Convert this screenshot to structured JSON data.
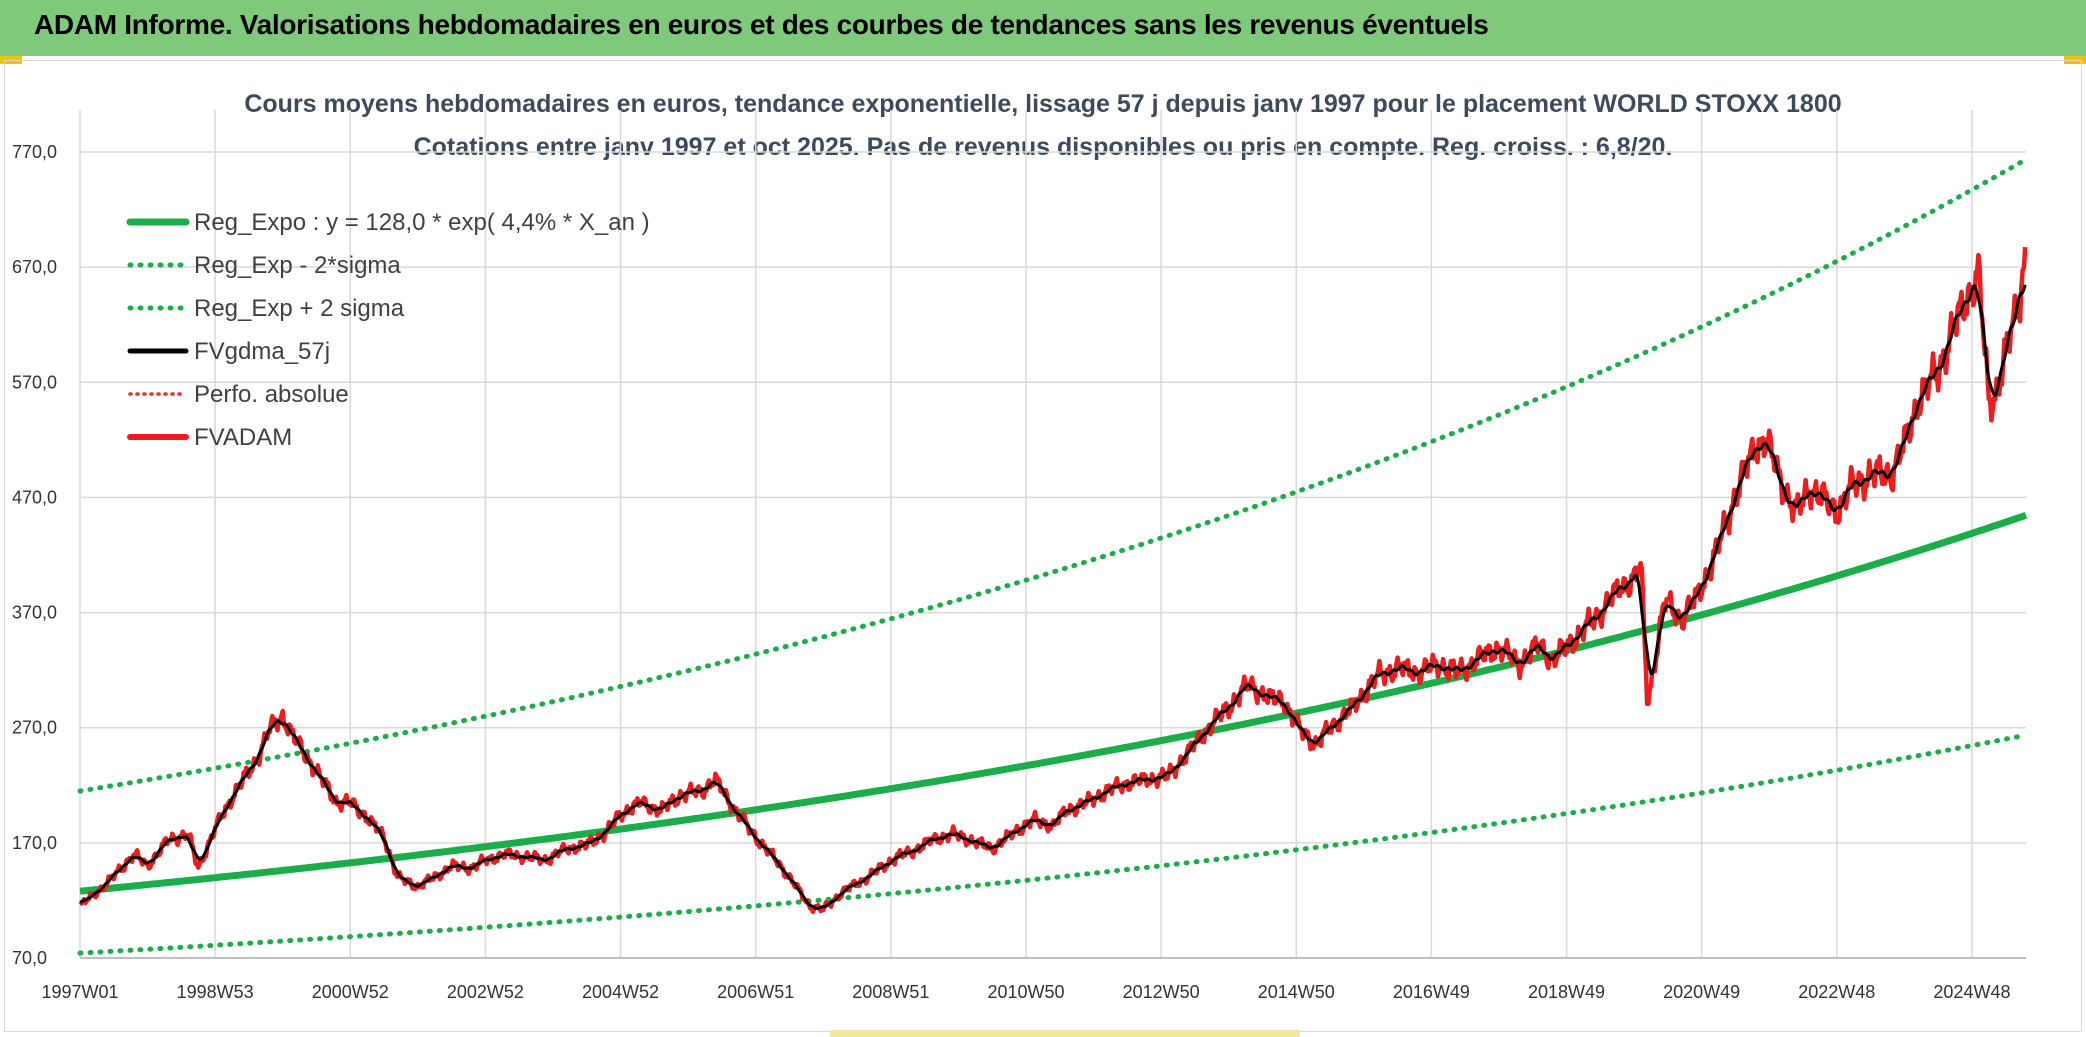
{
  "header": {
    "title": "ADAM Informe. Valorisations hebdomadaires en euros et des courbes de tendances sans les revenus éventuels"
  },
  "colors": {
    "banner": "#7fc97a",
    "trend": "#1aad4a",
    "fvadam": "#ee1c1c",
    "gdma": "#000000",
    "perfo": "#e03030",
    "grid": "#d9d9d9"
  },
  "chart_data": {
    "type": "line",
    "title": "Cours moyens hebdomadaires en euros, tendance exponentielle, lissage 57 j depuis janv 1997 pour le placement WORLD STOXX 1800",
    "subtitle": "Cotations entre janv 1997 et oct 2025. Pas de revenus disponibles ou pris en compte. Reg. croiss. : 6,8/20.",
    "xlabel": "",
    "ylabel": "",
    "ylim": [
      70,
      770
    ],
    "y_ticks": [
      "770,0",
      "670,0",
      "570,0",
      "470,0",
      "370,0",
      "270,0",
      "170,0",
      "70,0"
    ],
    "x_ticks": [
      "1997W01",
      "1998W53",
      "2000W52",
      "2002W52",
      "2004W52",
      "2006W51",
      "2008W51",
      "2010W50",
      "2012W50",
      "2014W50",
      "2016W49",
      "2018W49",
      "2020W49",
      "2022W48",
      "2024W48"
    ],
    "x_range": [
      1997.0,
      2025.8
    ],
    "grid": true,
    "legend_position": "top-left",
    "regression": {
      "a": 128.0,
      "rate": 0.044,
      "sigma_factor_low": 0.58,
      "sigma_factor_high": 1.68
    },
    "series": [
      {
        "name": "Reg_Expo : y = 128,0 * exp( 4,4% *  X_an )",
        "style": "solid-thick",
        "color": "#1aad4a"
      },
      {
        "name": "Reg_Exp - 2*sigma",
        "style": "dotted",
        "color": "#1aad4a"
      },
      {
        "name": "Reg_Exp + 2 sigma",
        "style": "dotted",
        "color": "#1aad4a"
      },
      {
        "name": "FVgdma_57j",
        "style": "solid",
        "color": "#000000"
      },
      {
        "name": "Perfo. absolue",
        "style": "dotted",
        "color": "#e03030"
      },
      {
        "name": "FVADAM",
        "style": "solid",
        "color": "#ee1c1c",
        "x": [
          1997.0,
          1997.4,
          1997.8,
          1998.0,
          1998.3,
          1998.6,
          1998.75,
          1999.0,
          1999.3,
          1999.6,
          1999.8,
          2000.0,
          2000.2,
          2000.5,
          2000.8,
          2001.0,
          2001.2,
          2001.5,
          2001.7,
          2002.0,
          2002.3,
          2002.5,
          2002.8,
          2003.0,
          2003.3,
          2003.6,
          2003.9,
          2004.2,
          2004.5,
          2004.8,
          2005.0,
          2005.3,
          2005.6,
          2005.9,
          2006.2,
          2006.4,
          2006.7,
          2007.0,
          2007.3,
          2007.5,
          2007.8,
          2008.0,
          2008.3,
          2008.6,
          2008.9,
          2009.1,
          2009.3,
          2009.6,
          2009.9,
          2010.2,
          2010.5,
          2010.8,
          2011.1,
          2011.4,
          2011.6,
          2011.9,
          2012.2,
          2012.5,
          2012.8,
          2013.1,
          2013.4,
          2013.7,
          2014.0,
          2014.3,
          2014.6,
          2014.8,
          2015.0,
          2015.3,
          2015.5,
          2015.8,
          2016.0,
          2016.2,
          2016.5,
          2016.8,
          2017.1,
          2017.4,
          2017.7,
          2018.0,
          2018.3,
          2018.6,
          2018.8,
          2018.95,
          2019.2,
          2019.5,
          2019.8,
          2020.0,
          2020.1,
          2020.2,
          2020.45,
          2020.7,
          2020.9,
          2021.2,
          2021.5,
          2021.8,
          2021.95,
          2022.2,
          2022.4,
          2022.6,
          2022.8,
          2023.0,
          2023.2,
          2023.5,
          2023.8,
          2024.0,
          2024.2,
          2024.5,
          2024.7,
          2024.9,
          2025.1,
          2025.25,
          2025.35,
          2025.5,
          2025.7,
          2025.8
        ],
        "y": [
          115,
          135,
          160,
          150,
          172,
          178,
          148,
          182,
          215,
          240,
          268,
          280,
          258,
          232,
          205,
          205,
          195,
          175,
          140,
          132,
          142,
          150,
          148,
          155,
          160,
          158,
          155,
          165,
          168,
          180,
          195,
          205,
          198,
          212,
          215,
          225,
          198,
          175,
          155,
          140,
          115,
          112,
          128,
          138,
          150,
          158,
          162,
          172,
          178,
          172,
          165,
          178,
          190,
          185,
          198,
          205,
          215,
          222,
          225,
          228,
          248,
          270,
          288,
          308,
          295,
          295,
          272,
          255,
          270,
          285,
          300,
          315,
          322,
          318,
          325,
          318,
          330,
          340,
          325,
          342,
          328,
          338,
          352,
          370,
          392,
          400,
          412,
          290,
          380,
          365,
          380,
          420,
          472,
          515,
          520,
          480,
          455,
          480,
          468,
          458,
          478,
          490,
          490,
          515,
          555,
          580,
          612,
          640,
          665,
          552,
          560,
          595,
          640,
          685
        ]
      }
    ]
  }
}
